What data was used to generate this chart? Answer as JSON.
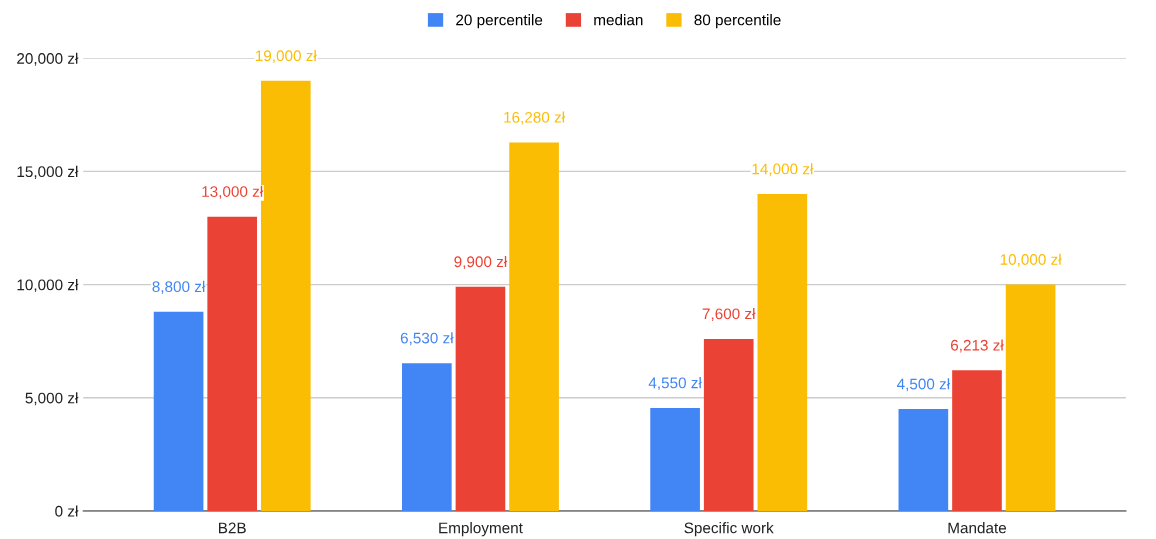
{
  "chart_data": {
    "type": "bar",
    "categories": [
      "B2B",
      "Employment",
      "Specific work",
      "Mandate"
    ],
    "series": [
      {
        "name": "20 percentile",
        "color": "#4285f4",
        "values": [
          8800,
          6530,
          4550,
          4500
        ],
        "value_labels": [
          "8,800 zł",
          "6,530 zł",
          "4,550 zł",
          "4,500 zł"
        ]
      },
      {
        "name": "median",
        "color": "#ea4335",
        "values": [
          13000,
          9900,
          7600,
          6213
        ],
        "value_labels": [
          "13,000 zł",
          "9,900 zł",
          "7,600 zł",
          "6,213 zł"
        ]
      },
      {
        "name": "80 percentile",
        "color": "#fbbc04",
        "values": [
          19000,
          16280,
          14000,
          10000
        ],
        "value_labels": [
          "19,000 zł",
          "16,280 zł",
          "14,000 zł",
          "10,000 zł"
        ]
      }
    ],
    "ylim": [
      0,
      20000
    ],
    "yticks": [
      {
        "value": 0,
        "label": "0 zł"
      },
      {
        "value": 5000,
        "label": "5,000 zł"
      },
      {
        "value": 10000,
        "label": "10,000 zł"
      },
      {
        "value": 15000,
        "label": "15,000 zł"
      },
      {
        "value": 20000,
        "label": "20,000 zł"
      }
    ],
    "grid": "y",
    "legend": "top"
  }
}
